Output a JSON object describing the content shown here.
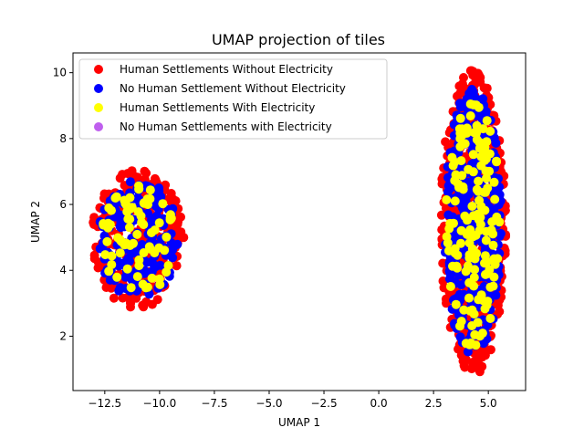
{
  "chart_data": {
    "type": "scatter",
    "title": "UMAP projection of tiles",
    "xlabel": "UMAP 1",
    "ylabel": "UMAP 2",
    "xlim": [
      -13.95,
      6.7
    ],
    "ylim": [
      0.35,
      10.6
    ],
    "xticks": [
      -12.5,
      -10.0,
      -7.5,
      -5.0,
      -2.5,
      0.0,
      2.5,
      5.0
    ],
    "xtick_labels": [
      "−12.5",
      "−10.0",
      "−7.5",
      "−5.0",
      "−2.5",
      "0.0",
      "2.5",
      "5.0"
    ],
    "yticks": [
      2,
      4,
      6,
      8,
      10
    ],
    "ytick_labels": [
      "2",
      "4",
      "6",
      "8",
      "10"
    ],
    "grid": false,
    "legend_position": "top-left",
    "clusters": [
      {
        "center": [
          -11.0,
          4.95
        ],
        "radius": [
          2.1,
          2.1
        ]
      },
      {
        "center": [
          4.3,
          5.45
        ],
        "radius": [
          1.5,
          4.65
        ]
      }
    ],
    "series": [
      {
        "name": "Human Settlements Without Electricity",
        "color": "#ff0000",
        "count": [
          260,
          600
        ]
      },
      {
        "name": "No Human Settlement Without Electricity",
        "color": "#0000ff",
        "count": [
          180,
          420
        ]
      },
      {
        "name": "Human Settlements With Electricity",
        "color": "#ffff00",
        "count": [
          75,
          150
        ]
      },
      {
        "name": "No Human Settlements with Electricity",
        "color": "#bf5fee",
        "count": [
          0,
          0
        ]
      }
    ]
  }
}
